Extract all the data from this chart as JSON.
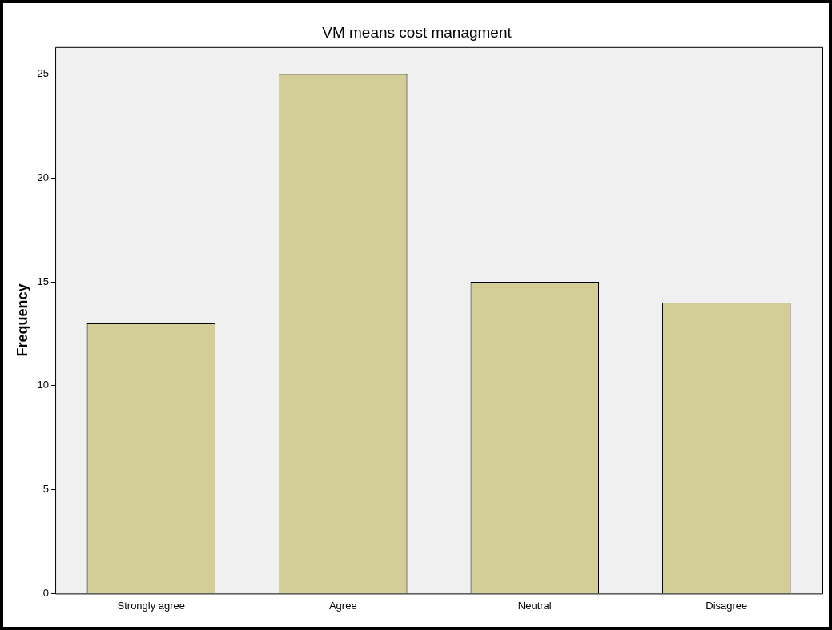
{
  "chart_data": {
    "type": "bar",
    "title": "VM means cost managment",
    "ylabel": "Frequency",
    "categories": [
      "Strongly agree",
      "Agree",
      "Neutral",
      "Disagree"
    ],
    "values": [
      13,
      25,
      15,
      14
    ],
    "color": "#d3ce97",
    "ylim": [
      0,
      26.3
    ],
    "yticks": [
      0,
      5,
      10,
      15,
      20,
      25
    ],
    "grid": false,
    "legend": false
  }
}
